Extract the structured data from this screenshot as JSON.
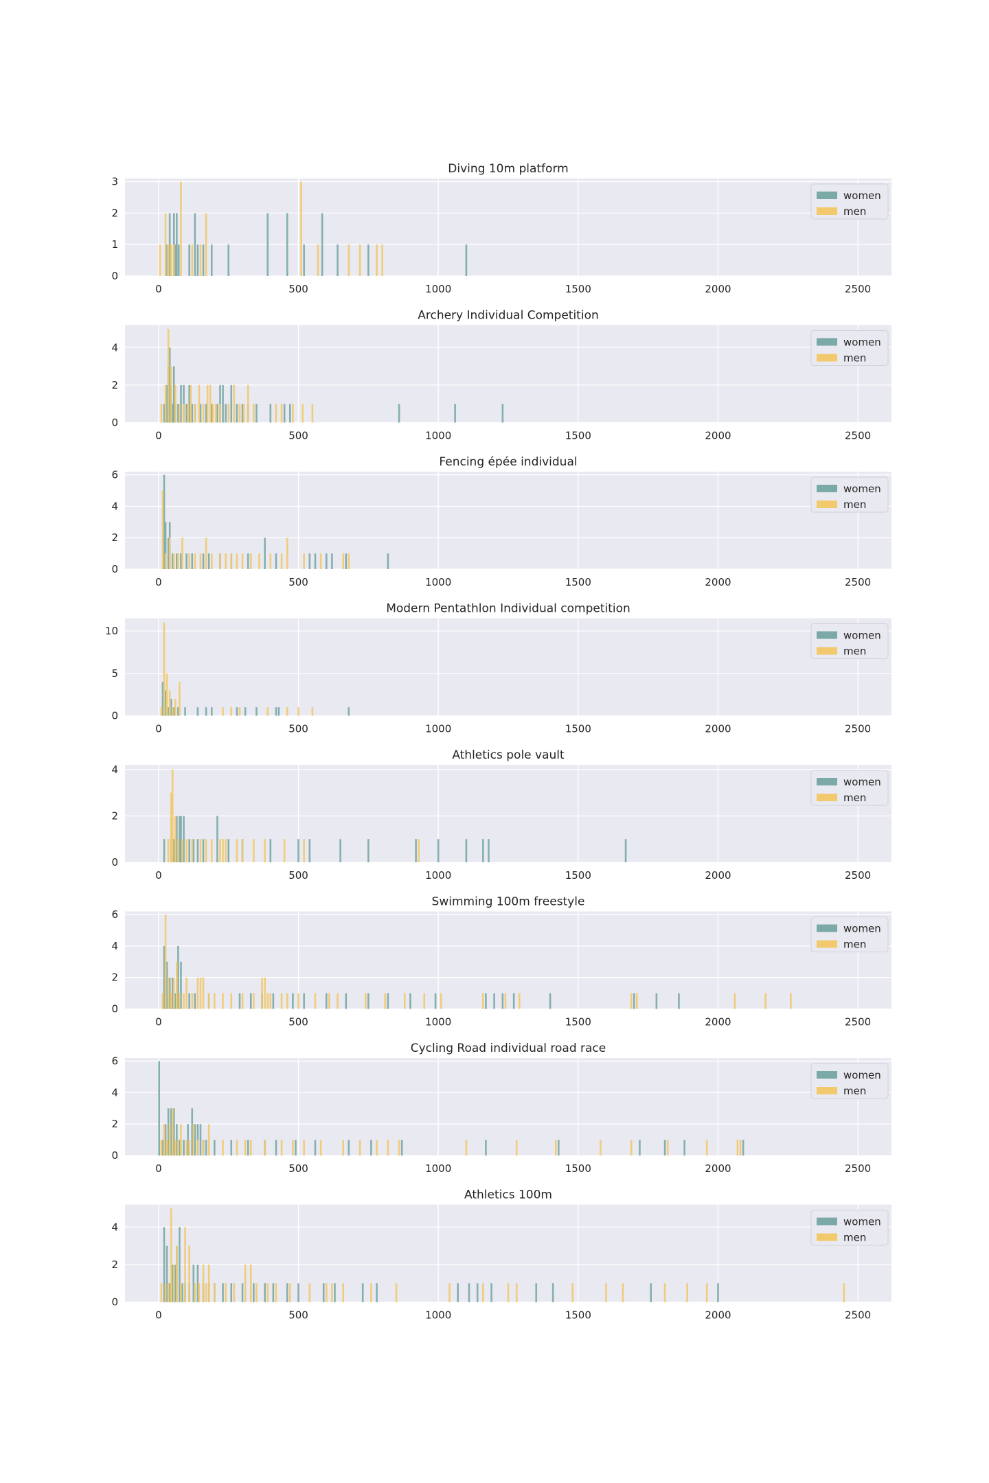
{
  "colors": {
    "women": "#7aa9a7",
    "men": "#f2c96d",
    "panel_bg": "#e9e9f1",
    "grid": "#ffffff"
  },
  "chart_data": [
    {
      "type": "bar",
      "title": "Diving 10m platform",
      "xlabel": "",
      "ylabel": "",
      "xlim": [
        -120,
        2620
      ],
      "ylim": [
        0,
        3.1
      ],
      "xticks": [
        "0",
        "500",
        "1000",
        "1500",
        "2000",
        "2500"
      ],
      "yticks": [
        "0",
        "1",
        "2",
        "3"
      ],
      "legend": "top-right",
      "series": [
        {
          "name": "women",
          "x": [
            28,
            40,
            55,
            60,
            65,
            72,
            110,
            130,
            140,
            160,
            190,
            250,
            390,
            460,
            520,
            585,
            640,
            750,
            1100
          ],
          "values": [
            1,
            2,
            2,
            1,
            2,
            1,
            1,
            2,
            1,
            1,
            1,
            1,
            2,
            2,
            1,
            2,
            1,
            1,
            1
          ]
        },
        {
          "name": "men",
          "x": [
            5,
            25,
            35,
            45,
            55,
            80,
            120,
            150,
            170,
            510,
            570,
            680,
            720,
            780,
            800
          ],
          "values": [
            1,
            2,
            1,
            1,
            1,
            3,
            1,
            1,
            2,
            3,
            1,
            1,
            1,
            1,
            1
          ]
        }
      ]
    },
    {
      "type": "bar",
      "title": "Archery Individual Competition",
      "xlabel": "",
      "ylabel": "",
      "xlim": [
        -120,
        2620
      ],
      "ylim": [
        0,
        5.2
      ],
      "xticks": [
        "0",
        "500",
        "1000",
        "1500",
        "2000",
        "2500"
      ],
      "yticks": [
        "0",
        "2",
        "4"
      ],
      "legend": "top-right",
      "series": [
        {
          "name": "women",
          "x": [
            20,
            30,
            35,
            40,
            45,
            50,
            55,
            60,
            70,
            80,
            90,
            100,
            110,
            120,
            130,
            150,
            170,
            190,
            210,
            220,
            230,
            240,
            260,
            280,
            300,
            320,
            350,
            400,
            450,
            470,
            860,
            1060,
            1230
          ],
          "values": [
            1,
            2,
            3,
            4,
            2,
            1,
            3,
            1,
            1,
            2,
            2,
            1,
            2,
            1,
            1,
            1,
            1,
            1,
            1,
            2,
            2,
            1,
            2,
            1,
            1,
            1,
            1,
            1,
            1,
            1,
            1,
            1,
            1
          ]
        },
        {
          "name": "men",
          "x": [
            10,
            25,
            35,
            45,
            60,
            75,
            90,
            105,
            115,
            130,
            145,
            160,
            175,
            185,
            195,
            205,
            220,
            250,
            270,
            290,
            305,
            320,
            340,
            420,
            440,
            480,
            515,
            550
          ],
          "values": [
            1,
            2,
            5,
            3,
            2,
            1,
            1,
            1,
            2,
            1,
            2,
            1,
            2,
            2,
            1,
            1,
            1,
            1,
            2,
            1,
            1,
            2,
            1,
            1,
            1,
            1,
            1,
            1
          ]
        }
      ]
    },
    {
      "type": "bar",
      "title": "Fencing épée individual",
      "xlabel": "",
      "ylabel": "",
      "xlim": [
        -120,
        2620
      ],
      "ylim": [
        0,
        6.2
      ],
      "xticks": [
        "0",
        "500",
        "1000",
        "1500",
        "2000",
        "2500"
      ],
      "yticks": [
        "0",
        "2",
        "4",
        "6"
      ],
      "legend": "top-right",
      "series": [
        {
          "name": "women",
          "x": [
            20,
            25,
            35,
            40,
            50,
            65,
            80,
            100,
            120,
            160,
            180,
            220,
            260,
            320,
            380,
            420,
            540,
            560,
            600,
            620,
            670,
            820
          ],
          "values": [
            6,
            3,
            2,
            3,
            1,
            1,
            1,
            1,
            1,
            1,
            1,
            1,
            1,
            1,
            2,
            1,
            1,
            1,
            1,
            1,
            1,
            1
          ]
        },
        {
          "name": "men",
          "x": [
            15,
            25,
            40,
            55,
            70,
            85,
            110,
            130,
            150,
            170,
            190,
            220,
            240,
            260,
            280,
            300,
            330,
            360,
            400,
            440,
            460,
            520,
            580,
            660,
            680
          ],
          "values": [
            5,
            1,
            2,
            1,
            1,
            2,
            1,
            1,
            1,
            2,
            1,
            1,
            1,
            1,
            1,
            1,
            1,
            1,
            1,
            1,
            2,
            1,
            1,
            1,
            1
          ]
        }
      ]
    },
    {
      "type": "bar",
      "title": "Modern Pentathlon Individual competition",
      "xlabel": "",
      "ylabel": "",
      "xlim": [
        -120,
        2620
      ],
      "ylim": [
        0,
        11.5
      ],
      "xticks": [
        "0",
        "500",
        "1000",
        "1500",
        "2000",
        "2500"
      ],
      "yticks": [
        "0",
        "5",
        "10"
      ],
      "legend": "top-right",
      "series": [
        {
          "name": "women",
          "x": [
            15,
            25,
            35,
            45,
            55,
            70,
            95,
            140,
            170,
            190,
            280,
            310,
            350,
            420,
            430,
            680
          ],
          "values": [
            4,
            3,
            1,
            2,
            1,
            1,
            1,
            1,
            1,
            1,
            1,
            1,
            1,
            1,
            1,
            1
          ]
        },
        {
          "name": "men",
          "x": [
            10,
            20,
            30,
            40,
            50,
            60,
            75,
            230,
            260,
            290,
            390,
            460,
            500,
            550
          ],
          "values": [
            1,
            11,
            5,
            3,
            1,
            2,
            4,
            1,
            1,
            1,
            1,
            1,
            1,
            1
          ]
        }
      ]
    },
    {
      "type": "bar",
      "title": "Athletics pole vault",
      "xlabel": "",
      "ylabel": "",
      "xlim": [
        -120,
        2620
      ],
      "ylim": [
        0,
        4.2
      ],
      "xticks": [
        "0",
        "500",
        "1000",
        "1500",
        "2000",
        "2500"
      ],
      "yticks": [
        "0",
        "2",
        "4"
      ],
      "legend": "top-right",
      "series": [
        {
          "name": "women",
          "x": [
            20,
            45,
            55,
            65,
            75,
            80,
            90,
            110,
            125,
            140,
            160,
            210,
            250,
            300,
            400,
            500,
            540,
            650,
            750,
            920,
            1000,
            1100,
            1160,
            1180,
            1670
          ],
          "values": [
            1,
            1,
            1,
            2,
            2,
            2,
            2,
            1,
            1,
            1,
            1,
            2,
            1,
            1,
            1,
            1,
            1,
            1,
            1,
            1,
            1,
            1,
            1,
            1,
            1
          ]
        },
        {
          "name": "men",
          "x": [
            35,
            45,
            50,
            60,
            70,
            85,
            100,
            120,
            150,
            170,
            190,
            220,
            230,
            240,
            280,
            300,
            340,
            380,
            450,
            520,
            930
          ],
          "values": [
            1,
            3,
            4,
            2,
            1,
            1,
            1,
            1,
            1,
            1,
            1,
            1,
            1,
            1,
            1,
            1,
            1,
            1,
            1,
            1,
            1
          ]
        }
      ]
    },
    {
      "type": "bar",
      "title": "Swimming 100m freestyle",
      "xlabel": "",
      "ylabel": "",
      "xlim": [
        -120,
        2620
      ],
      "ylim": [
        0,
        6.2
      ],
      "xticks": [
        "0",
        "500",
        "1000",
        "1500",
        "2000",
        "2500"
      ],
      "yticks": [
        "0",
        "2",
        "4",
        "6"
      ],
      "legend": "top-right",
      "series": [
        {
          "name": "women",
          "x": [
            20,
            30,
            40,
            50,
            60,
            70,
            80,
            110,
            130,
            180,
            290,
            330,
            370,
            410,
            480,
            520,
            600,
            670,
            750,
            820,
            900,
            990,
            1170,
            1200,
            1230,
            1270,
            1400,
            1700,
            1780,
            1860
          ],
          "values": [
            4,
            3,
            2,
            2,
            1,
            4,
            3,
            1,
            1,
            1,
            1,
            1,
            1,
            1,
            1,
            1,
            1,
            1,
            1,
            1,
            1,
            1,
            1,
            1,
            1,
            1,
            1,
            1,
            1,
            1
          ]
        },
        {
          "name": "men",
          "x": [
            15,
            25,
            35,
            45,
            55,
            65,
            75,
            90,
            100,
            120,
            140,
            150,
            160,
            180,
            200,
            230,
            260,
            300,
            340,
            370,
            380,
            390,
            400,
            440,
            460,
            500,
            560,
            610,
            640,
            740,
            810,
            880,
            950,
            1010,
            1160,
            1240,
            1290,
            1690,
            1710,
            2060,
            2170,
            2260
          ],
          "values": [
            1,
            6,
            2,
            1,
            2,
            3,
            1,
            1,
            2,
            1,
            2,
            2,
            2,
            1,
            1,
            1,
            1,
            1,
            1,
            2,
            2,
            1,
            1,
            1,
            1,
            1,
            1,
            1,
            1,
            1,
            1,
            1,
            1,
            1,
            1,
            1,
            1,
            1,
            1,
            1,
            1,
            1
          ]
        }
      ]
    },
    {
      "type": "bar",
      "title": "Cycling Road individual road race",
      "xlabel": "",
      "ylabel": "",
      "xlim": [
        -120,
        2620
      ],
      "ylim": [
        0,
        6.2
      ],
      "xticks": [
        "0",
        "500",
        "1000",
        "1500",
        "2000",
        "2500"
      ],
      "yticks": [
        "0",
        "2",
        "4",
        "6"
      ],
      "legend": "top-right",
      "series": [
        {
          "name": "women",
          "x": [
            2,
            15,
            25,
            35,
            45,
            55,
            65,
            75,
            90,
            105,
            120,
            130,
            140,
            150,
            160,
            170,
            200,
            260,
            320,
            380,
            420,
            490,
            560,
            680,
            760,
            870,
            1170,
            1430,
            1720,
            1810,
            1880,
            2090
          ],
          "values": [
            6,
            1,
            2,
            3,
            3,
            3,
            2,
            1,
            1,
            2,
            3,
            2,
            2,
            2,
            1,
            1,
            1,
            1,
            1,
            1,
            1,
            1,
            1,
            1,
            1,
            1,
            1,
            1,
            1,
            1,
            1,
            1
          ]
        },
        {
          "name": "men",
          "x": [
            10,
            20,
            30,
            40,
            50,
            60,
            70,
            80,
            100,
            110,
            125,
            140,
            160,
            180,
            230,
            280,
            310,
            330,
            380,
            440,
            480,
            520,
            580,
            660,
            720,
            780,
            820,
            860,
            1100,
            1280,
            1420,
            1580,
            1690,
            1820,
            1960,
            2070,
            2080
          ],
          "values": [
            1,
            2,
            1,
            2,
            3,
            1,
            1,
            2,
            1,
            1,
            2,
            1,
            1,
            2,
            1,
            1,
            1,
            1,
            1,
            1,
            1,
            1,
            1,
            1,
            1,
            1,
            1,
            1,
            1,
            1,
            1,
            1,
            1,
            1,
            1,
            1,
            1
          ]
        }
      ]
    },
    {
      "type": "bar",
      "title": "Athletics 100m",
      "xlabel": "",
      "ylabel": "",
      "xlim": [
        -120,
        2620
      ],
      "ylim": [
        0,
        5.2
      ],
      "xticks": [
        "0",
        "500",
        "1000",
        "1500",
        "2000",
        "2500"
      ],
      "yticks": [
        "0",
        "2",
        "4"
      ],
      "legend": "top-right",
      "series": [
        {
          "name": "women",
          "x": [
            20,
            30,
            40,
            50,
            60,
            65,
            75,
            85,
            95,
            110,
            125,
            140,
            160,
            180,
            200,
            230,
            260,
            300,
            340,
            380,
            410,
            460,
            500,
            590,
            630,
            730,
            780,
            1070,
            1110,
            1140,
            1190,
            1350,
            1410,
            1760,
            2000
          ],
          "values": [
            4,
            3,
            1,
            2,
            2,
            3,
            4,
            1,
            1,
            1,
            2,
            2,
            1,
            1,
            1,
            1,
            1,
            1,
            1,
            1,
            1,
            1,
            1,
            1,
            1,
            1,
            1,
            1,
            1,
            1,
            1,
            1,
            1,
            1,
            1
          ]
        },
        {
          "name": "men",
          "x": [
            10,
            25,
            35,
            45,
            55,
            65,
            80,
            95,
            110,
            130,
            145,
            160,
            170,
            180,
            200,
            240,
            270,
            310,
            330,
            350,
            390,
            420,
            470,
            540,
            600,
            620,
            660,
            760,
            850,
            1040,
            1160,
            1250,
            1280,
            1480,
            1600,
            1660,
            1810,
            1890,
            1960,
            2450
          ],
          "values": [
            1,
            1,
            1,
            5,
            2,
            3,
            1,
            4,
            3,
            1,
            1,
            2,
            1,
            2,
            1,
            1,
            1,
            2,
            2,
            1,
            1,
            1,
            1,
            1,
            1,
            1,
            1,
            1,
            1,
            1,
            1,
            1,
            1,
            1,
            1,
            1,
            1,
            1,
            1,
            1
          ]
        }
      ]
    }
  ]
}
